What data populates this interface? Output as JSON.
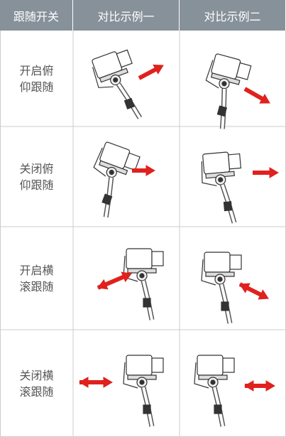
{
  "table": {
    "header": [
      "跟随开关",
      "对比示例一",
      "对比示例二"
    ],
    "rows": [
      {
        "label": [
          "开启俯",
          "仰跟随"
        ]
      },
      {
        "label": [
          "关闭俯",
          "仰跟随"
        ]
      },
      {
        "label": [
          "开启横",
          "滚跟随"
        ]
      },
      {
        "label": [
          "关闭横",
          "滚跟随"
        ]
      }
    ]
  }
}
